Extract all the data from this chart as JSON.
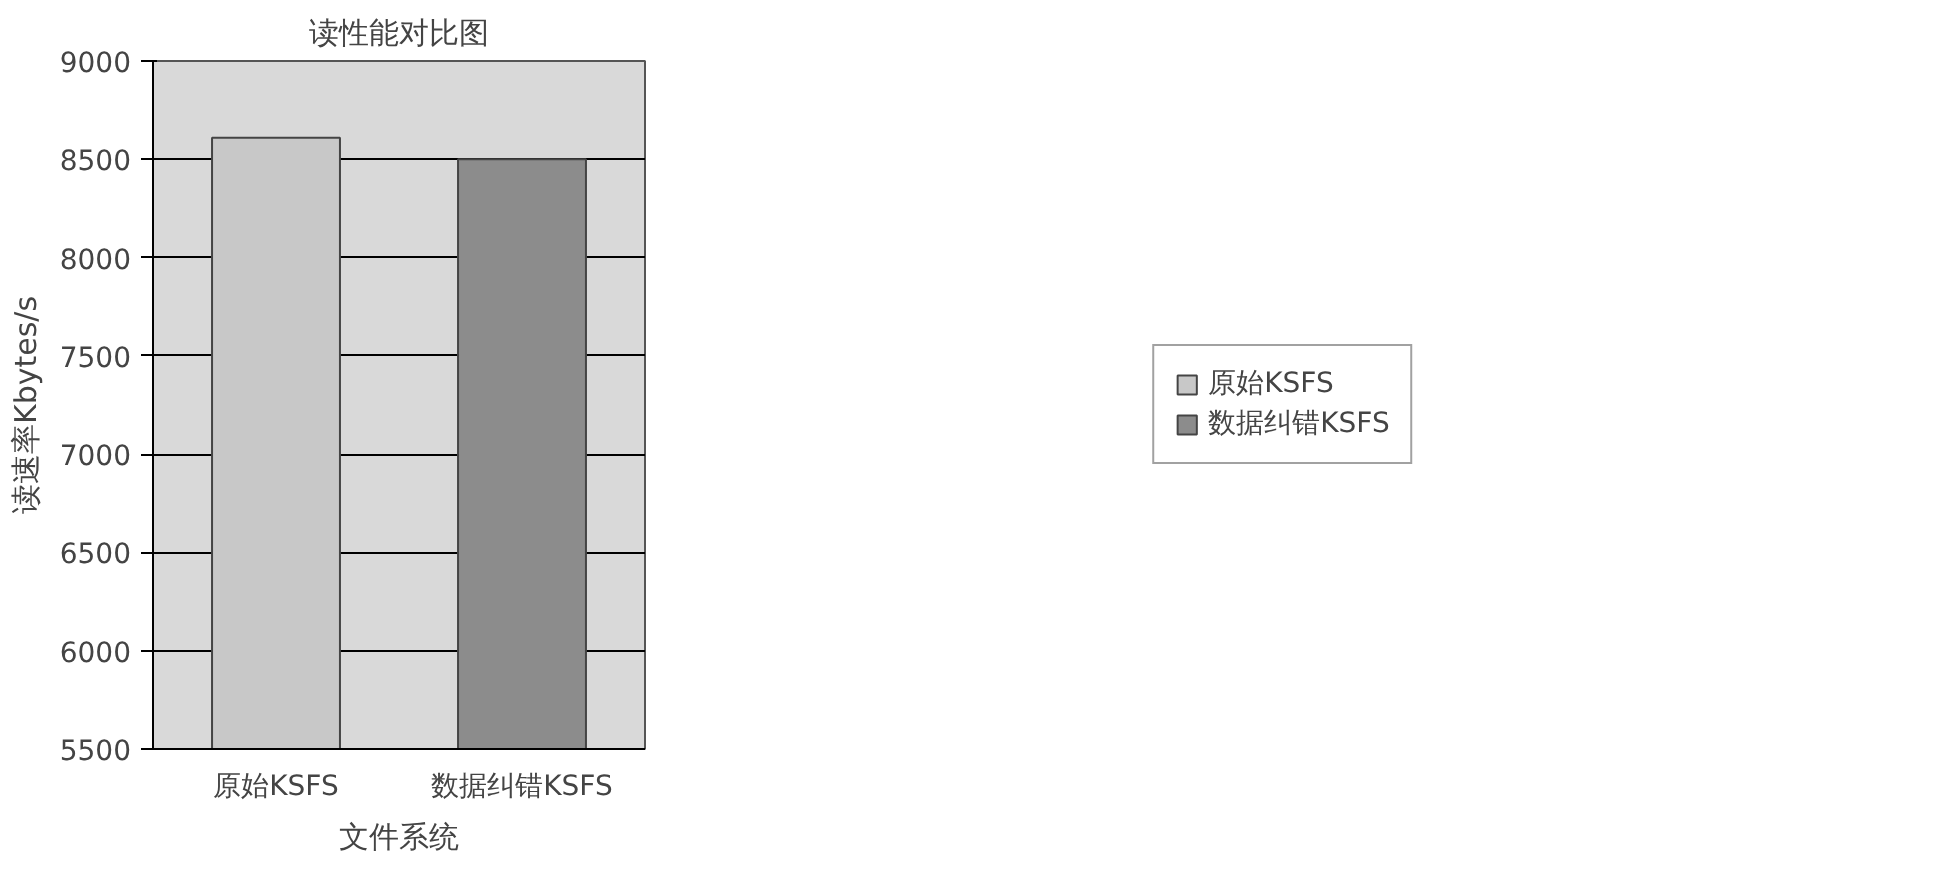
{
  "chart_data": {
    "type": "bar",
    "title": "读性能对比图",
    "xlabel": "文件系统",
    "ylabel": "读速率Kbytes/s",
    "categories": [
      "原始KSFS",
      "数据纠错KSFS"
    ],
    "series": [
      {
        "name": "原始KSFS",
        "color": "#c8c8c8",
        "values": [
          8610,
          null
        ]
      },
      {
        "name": "数据纠错KSFS",
        "color": "#8c8c8c",
        "values": [
          null,
          8500
        ]
      }
    ],
    "ylim": [
      5500,
      9000
    ],
    "yticks": [
      5500,
      6000,
      6500,
      7000,
      7500,
      8000,
      8500,
      9000
    ],
    "grid": "y",
    "legend": "right"
  }
}
